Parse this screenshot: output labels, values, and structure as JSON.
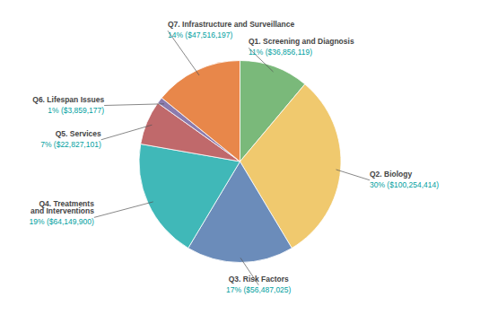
{
  "chart_data": {
    "type": "pie",
    "categories": [
      "Q1. Screening and Diagnosis",
      "Q2. Biology",
      "Q3. Risk Factors",
      "Q4. Treatments\nand Interventions",
      "Q5. Services",
      "Q6. Lifespan Issues",
      "Q7. Infrastructure and Surveillance"
    ],
    "values": [
      11,
      30,
      17,
      19,
      7,
      1,
      14
    ],
    "value_labels": [
      "11% ($36,856,119)",
      "30% ($100,254,414)",
      "17% ($56,487,025)",
      "19% ($64,149,900)",
      "7% ($22,827,101)",
      "1% ($3,859,177)",
      "14% ($47,516,197)"
    ],
    "colors": [
      "#7ab97a",
      "#f0c96e",
      "#6b8cba",
      "#40b8b8",
      "#c0696b",
      "#8b7bae",
      "#e8874a"
    ],
    "data_labels": true
  }
}
